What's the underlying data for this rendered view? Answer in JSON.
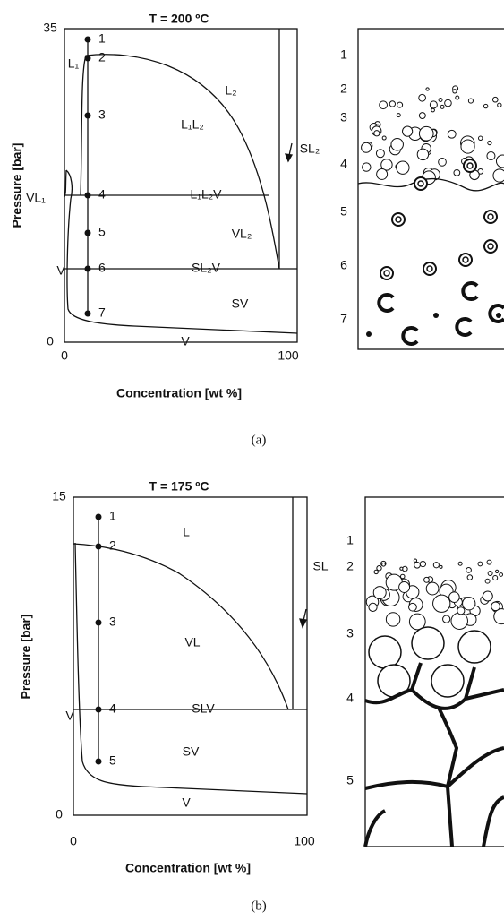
{
  "panels": [
    {
      "title": "T = 200 ºC",
      "y_label": "Pressure [bar]",
      "x_label": "Concentration [wt %]",
      "y_ticks": [
        "35",
        "0"
      ],
      "x_ticks": [
        "0",
        "100"
      ],
      "regions": [
        "L₁",
        "L₂",
        "L₁L₂",
        "VL₁",
        "SL₂",
        "L₁L₂V",
        "VL₂",
        "V",
        "SL₂V",
        "SV",
        "V"
      ],
      "points": [
        "1",
        "2",
        "3",
        "4",
        "5",
        "6",
        "7"
      ],
      "stages": [
        "1",
        "2",
        "3",
        "4",
        "5",
        "6",
        "7"
      ],
      "caption": "(a)"
    },
    {
      "title": "T = 175 ºC",
      "y_label": "Pressure [bar]",
      "x_label": "Concentration [wt %]",
      "y_ticks": [
        "15",
        "0"
      ],
      "x_ticks": [
        "0",
        "100"
      ],
      "regions": [
        "L",
        "SL",
        "VL",
        "SLV",
        "V",
        "SV",
        "V"
      ],
      "points": [
        "1",
        "2",
        "3",
        "4",
        "5"
      ],
      "stages": [
        "1",
        "2",
        "3",
        "4",
        "5"
      ],
      "caption": "(b)"
    }
  ]
}
